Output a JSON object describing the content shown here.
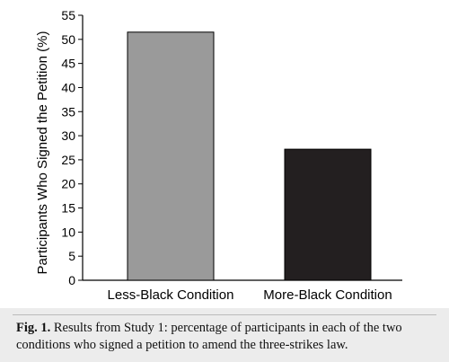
{
  "chart_data": {
    "type": "bar",
    "categories": [
      "Less-Black Condition",
      "More-Black Condition"
    ],
    "values": [
      51.5,
      27.2
    ],
    "ylabel": "Participants Who Signed the Petition (%)",
    "xlabel": "",
    "ylim": [
      0,
      55
    ],
    "yticks": [
      0,
      5,
      10,
      15,
      20,
      25,
      30,
      35,
      40,
      45,
      50,
      55
    ],
    "bar_colors": [
      "#9a9a9a",
      "#231f20"
    ],
    "grid": false
  },
  "caption": {
    "label": "Fig. 1.",
    "text": "Results from Study 1: percentage of participants in each of the two conditions who signed a petition to amend the three-strikes law."
  }
}
